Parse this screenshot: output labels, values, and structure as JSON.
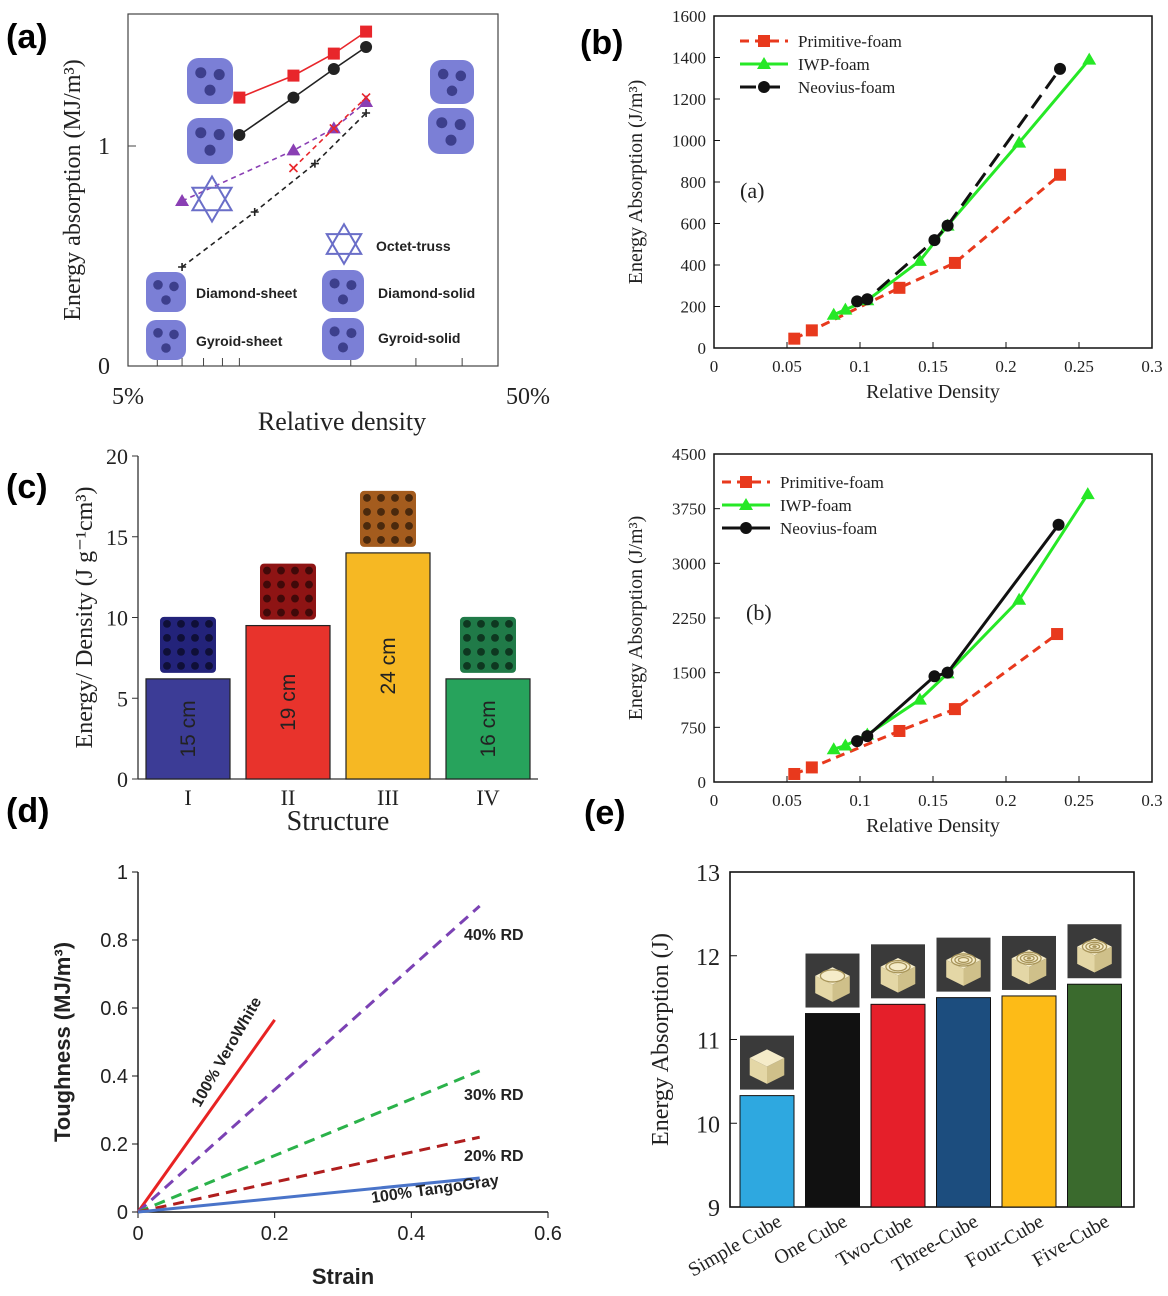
{
  "panels": [
    {
      "label": "(a)",
      "chart_data": {
        "type": "line",
        "xlabel": "Relative density",
        "ylabel": "Energy absorption  (MJ/m³)",
        "x_scale": "log",
        "x_tick_labels": [
          "5%",
          "50%"
        ],
        "y_tick_labels": [
          "0",
          "1"
        ],
        "series": [
          {
            "name": "Diamond-sheet",
            "color": "#e8262b",
            "dash": "solid",
            "marker": "square",
            "x": [
              0.1,
              0.14,
              0.18,
              0.22
            ],
            "y": [
              1.22,
              1.32,
              1.42,
              1.52
            ]
          },
          {
            "name": "Gyroid-sheet",
            "color": "#222222",
            "dash": "solid",
            "marker": "circle",
            "x": [
              0.1,
              0.14,
              0.18,
              0.22
            ],
            "y": [
              1.05,
              1.22,
              1.35,
              1.45
            ]
          },
          {
            "name": "Octet-truss",
            "color": "#8a3fb4",
            "dash": "dash",
            "marker": "triangle",
            "x": [
              0.07,
              0.14,
              0.18,
              0.22
            ],
            "y": [
              0.75,
              0.98,
              1.08,
              1.2
            ]
          },
          {
            "name": "Diamond-solid",
            "color": "#e8262b",
            "dash": "dash",
            "marker": "x",
            "x": [
              0.14,
              0.18,
              0.22
            ],
            "y": [
              0.9,
              1.08,
              1.22
            ]
          },
          {
            "name": "Gyroid-solid",
            "color": "#222222",
            "dash": "dash",
            "marker": "plus",
            "x": [
              0.07,
              0.11,
              0.16,
              0.22
            ],
            "y": [
              0.45,
              0.7,
              0.92,
              1.15
            ]
          }
        ],
        "annotations": [
          "Octet-truss",
          "Diamond-sheet",
          "Diamond-solid",
          "Gyroid-sheet",
          "Gyroid-solid"
        ]
      }
    },
    {
      "label": "(b)",
      "chart_data": [
        {
          "type": "line",
          "annotation": "(a)",
          "xlabel": "Relative Density",
          "ylabel": "Energy Absorption (J/m³)",
          "xlim": [
            0,
            0.3
          ],
          "ylim": [
            0,
            1600
          ],
          "x_ticks": [
            0,
            0.05,
            0.1,
            0.15,
            0.2,
            0.25,
            0.3
          ],
          "y_ticks": [
            0,
            200,
            400,
            600,
            800,
            1000,
            1200,
            1400,
            1600
          ],
          "legend": "top-left",
          "series": [
            {
              "name": "Primitive-foam",
              "color": "#e8391d",
              "dash": "dash",
              "marker": "square",
              "x": [
                0.055,
                0.067,
                0.127,
                0.165,
                0.237
              ],
              "y": [
                45,
                85,
                290,
                410,
                835
              ]
            },
            {
              "name": "IWP-foam",
              "color": "#26e826",
              "dash": "solid",
              "marker": "triangle",
              "x": [
                0.082,
                0.09,
                0.105,
                0.141,
                0.16,
                0.209,
                0.257
              ],
              "y": [
                160,
                185,
                230,
                420,
                590,
                990,
                1390
              ]
            },
            {
              "name": "Neovius-foam",
              "color": "#111111",
              "dash": "longdash",
              "marker": "circle",
              "x": [
                0.098,
                0.105,
                0.151,
                0.16,
                0.237
              ],
              "y": [
                225,
                235,
                520,
                590,
                1345
              ]
            }
          ]
        },
        {
          "type": "line",
          "annotation": "(b)",
          "xlabel": "Relative Density",
          "ylabel": "Energy Absorption (J/m³)",
          "xlim": [
            0,
            0.3
          ],
          "ylim": [
            0,
            4500
          ],
          "x_ticks": [
            0,
            0.05,
            0.1,
            0.15,
            0.2,
            0.25,
            0.3
          ],
          "y_ticks": [
            0,
            750,
            1500,
            2250,
            3000,
            3750,
            4500
          ],
          "legend": "top-left",
          "series": [
            {
              "name": "Primitive-foam",
              "color": "#e8391d",
              "dash": "dash",
              "marker": "square",
              "x": [
                0.055,
                0.067,
                0.127,
                0.165,
                0.235
              ],
              "y": [
                110,
                200,
                700,
                1000,
                2030
              ]
            },
            {
              "name": "IWP-foam",
              "color": "#26e826",
              "dash": "solid",
              "marker": "triangle",
              "x": [
                0.082,
                0.09,
                0.105,
                0.141,
                0.16,
                0.209,
                0.256
              ],
              "y": [
                450,
                500,
                650,
                1130,
                1490,
                2500,
                3950
              ]
            },
            {
              "name": "Neovius-foam",
              "color": "#111111",
              "dash": "solid",
              "marker": "circle",
              "x": [
                0.098,
                0.105,
                0.151,
                0.16,
                0.236
              ],
              "y": [
                560,
                630,
                1450,
                1500,
                3530
              ]
            }
          ]
        }
      ]
    },
    {
      "label": "(c)",
      "chart_data": {
        "type": "bar",
        "xlabel": "Structure",
        "ylabel": "Energy/ Density (J g⁻¹cm³)",
        "ylim": [
          0,
          20
        ],
        "y_ticks": [
          0,
          5,
          10,
          15,
          20
        ],
        "categories": [
          "I",
          "II",
          "III",
          "IV"
        ],
        "values": [
          6.2,
          9.5,
          14.0,
          6.2
        ],
        "bar_labels": [
          "15 cm",
          "19 cm",
          "24 cm",
          "16 cm"
        ],
        "colors": [
          "#3c3c96",
          "#e8332c",
          "#f6b823",
          "#27a35c"
        ]
      }
    },
    {
      "label": "(d)",
      "chart_data": {
        "type": "line",
        "xlabel": "Strain",
        "ylabel": "Toughness (MJ/m³)",
        "xlim": [
          0,
          0.6
        ],
        "ylim": [
          0,
          1
        ],
        "x_ticks": [
          0,
          0.2,
          0.4,
          0.6
        ],
        "y_ticks": [
          0,
          0.2,
          0.4,
          0.6,
          0.8,
          1
        ],
        "series": [
          {
            "name": "100% VeroWhite",
            "color": "#e82323",
            "dash": "solid",
            "x": [
              0,
              0.2
            ],
            "y": [
              0,
              0.565
            ]
          },
          {
            "name": "40% RD",
            "color": "#7b42b4",
            "dash": "dash",
            "x": [
              0,
              0.5
            ],
            "y": [
              0,
              0.9
            ]
          },
          {
            "name": "30% RD",
            "color": "#2bb24a",
            "dash": "dash",
            "x": [
              0,
              0.5
            ],
            "y": [
              0,
              0.415
            ]
          },
          {
            "name": "20% RD",
            "color": "#b01e1e",
            "dash": "dash",
            "x": [
              0,
              0.5
            ],
            "y": [
              0,
              0.22
            ]
          },
          {
            "name": "100% TangoGray",
            "color": "#4a74c9",
            "dash": "solid",
            "x": [
              0,
              0.5
            ],
            "y": [
              0,
              0.1
            ]
          }
        ]
      }
    },
    {
      "label": "(e)",
      "chart_data": {
        "type": "bar",
        "ylabel": "Energy Absorption (J)",
        "ylim": [
          9,
          13
        ],
        "y_ticks": [
          9,
          10,
          11,
          12,
          13
        ],
        "categories": [
          "Simple Cube",
          "One Cube",
          "Two-Cube",
          "Three-Cube",
          "Four-Cube",
          "Five-Cube"
        ],
        "values": [
          10.33,
          11.31,
          11.42,
          11.5,
          11.52,
          11.66
        ],
        "colors": [
          "#2ea8e0",
          "#111111",
          "#e51f2a",
          "#1c4d7e",
          "#fdbb17",
          "#3a6a2d"
        ]
      }
    }
  ],
  "icon_names": {
    "a": [
      "diamond-sheet-icon",
      "gyroid-sheet-icon",
      "octet-truss-icon",
      "diamond-solid-icon",
      "gyroid-solid-icon"
    ],
    "c": [
      "blue-lattice-icon",
      "red-lattice-icon",
      "orange-lattice-icon",
      "green-lattice-icon"
    ],
    "e": [
      "simple-cube-photo-icon",
      "one-cube-photo-icon",
      "two-cube-photo-icon",
      "three-cube-photo-icon",
      "four-cube-photo-icon",
      "five-cube-photo-icon"
    ]
  }
}
